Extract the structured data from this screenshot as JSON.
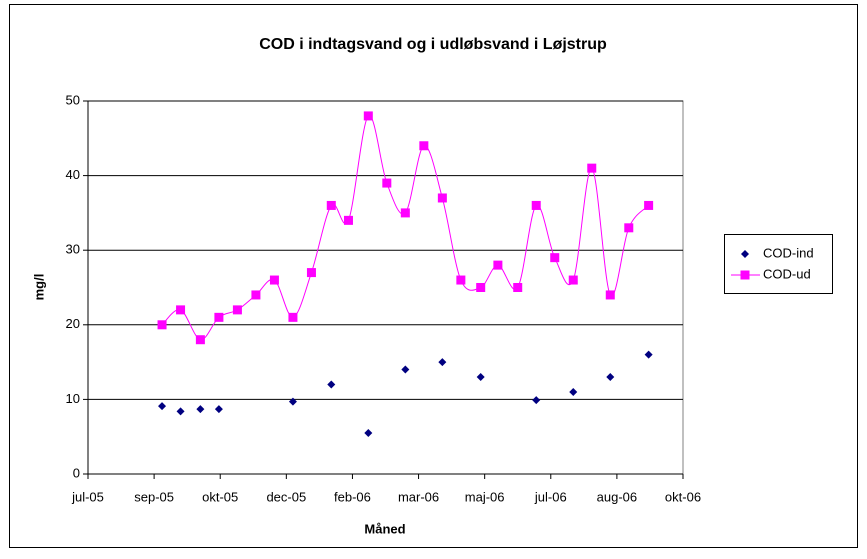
{
  "chart_data": {
    "type": "scatter",
    "title": "COD i indtagsvand og i udløbsvand i Løjstrup",
    "x_label": "Måned",
    "y_label": "mg/l",
    "xlim": [
      38553,
      39003
    ],
    "xticks": [
      {
        "value": 38553,
        "label": "jul-05"
      },
      {
        "value": 38603,
        "label": "sep-05"
      },
      {
        "value": 38653,
        "label": "okt-05"
      },
      {
        "value": 38703,
        "label": "dec-05"
      },
      {
        "value": 38753,
        "label": "feb-06"
      },
      {
        "value": 38803,
        "label": "mar-06"
      },
      {
        "value": 38853,
        "label": "maj-06"
      },
      {
        "value": 38903,
        "label": "jul-06"
      },
      {
        "value": 38953,
        "label": "aug-06"
      },
      {
        "value": 39003,
        "label": "okt-06"
      }
    ],
    "ylim": [
      0,
      50
    ],
    "yticks": [
      0,
      10,
      20,
      30,
      40,
      50
    ],
    "grid": true,
    "legend": "right",
    "series": [
      {
        "name": "COD-ind",
        "color": "#000080",
        "marker": "diamond",
        "line": false,
        "x": [
          38609,
          38623,
          38638,
          38652,
          38708,
          38737,
          38765,
          38793,
          38821,
          38850,
          38892,
          38920,
          38948,
          38977
        ],
        "values": [
          9.1,
          8.4,
          8.7,
          8.7,
          9.7,
          12,
          5.5,
          14,
          15,
          13,
          9.9,
          11,
          13,
          16
        ]
      },
      {
        "name": "COD-ud",
        "color": "#ff00ff",
        "marker": "square",
        "line": true,
        "x": [
          38609,
          38623,
          38638,
          38652,
          38666,
          38680,
          38694,
          38708,
          38722,
          38737,
          38750,
          38765,
          38779,
          38793,
          38807,
          38821,
          38835,
          38850,
          38863,
          38878,
          38892,
          38906,
          38920,
          38934,
          38948,
          38962,
          38977
        ],
        "values": [
          20,
          22,
          18,
          21,
          22,
          24,
          26,
          21,
          27,
          36,
          34,
          48,
          39,
          35,
          44,
          37,
          26,
          25,
          28,
          25,
          36,
          29,
          26,
          41,
          24,
          33,
          36
        ]
      }
    ]
  }
}
